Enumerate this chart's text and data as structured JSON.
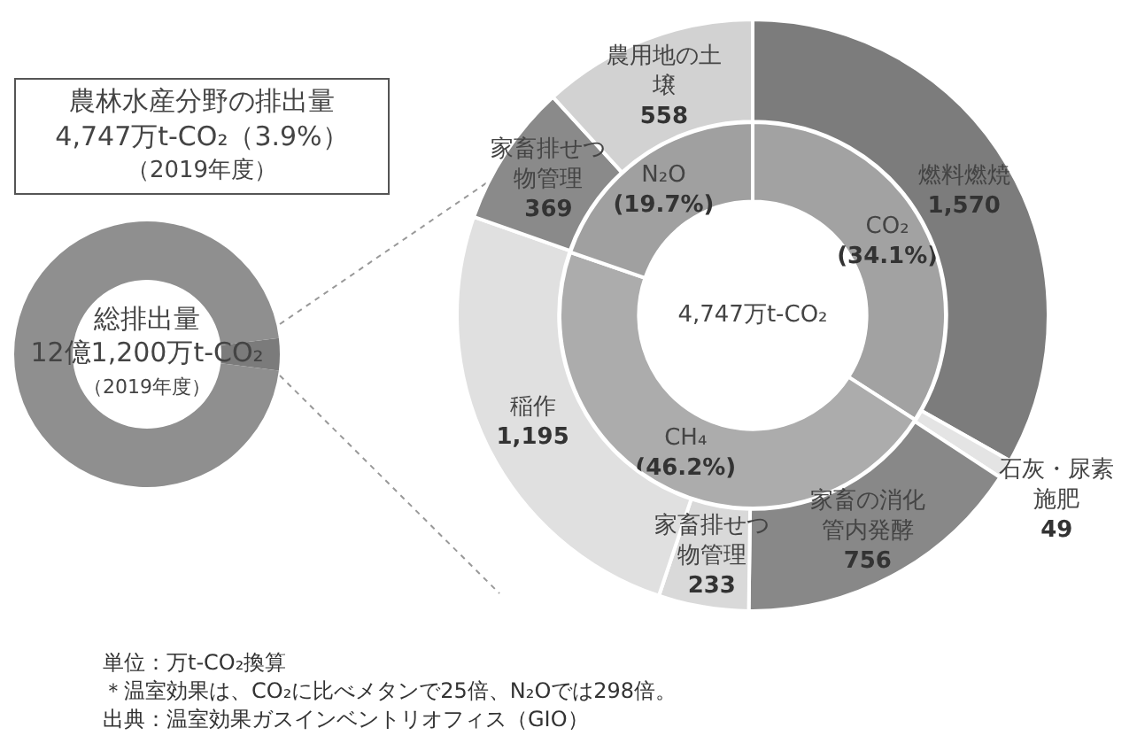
{
  "chart_data": [
    {
      "type": "donut",
      "title": "農林水産分野の排出量",
      "subtitle": "4,747万t-CO₂（3.9%）",
      "categories": [
        null,
        null
      ],
      "values": [
        3.9,
        96.1
      ],
      "colors": [
        "#7b7b7b",
        "#8f8f8f"
      ],
      "legend": false,
      "annotations": [
        "総排出量",
        "12億1,200万t-CO₂",
        "（2019年度）",
        "（2019年度）",
        "単位：万t-CO₂換算",
        "＊温室効果は、CO₂に比べメタンで25倍、N₂Oでは298倍。",
        "出典：温室効果ガスインベントリオフィス（GIO）"
      ]
    },
    {
      "type": "donut",
      "legend": false,
      "categories": [
        "燃料燃焼",
        "石灰・尿素施肥",
        "家畜の消化管内発酵",
        "家畜排せつ物管理",
        "稲作",
        "家畜排せつ物管理",
        "農用地の土壌"
      ],
      "values": [
        1570,
        49,
        756,
        233,
        1195,
        369,
        558
      ],
      "value_labels": [
        "1,570",
        "49",
        "756",
        "233",
        "1,195",
        "369",
        "558"
      ],
      "colors": [
        "#7c7c7c",
        "#e4e4e4",
        "#888888",
        "#d9d9d9",
        "#e0e0e0",
        "#8a8a8a",
        "#d2d2d2"
      ]
    },
    {
      "type": "donut",
      "legend": false,
      "categories": [
        "CO₂",
        "CH₄",
        "N₂O"
      ],
      "values": [
        34.1,
        46.2,
        19.7
      ],
      "value_labels": [
        "(34.1%)",
        "(46.2%)",
        "(19.7%)"
      ],
      "colors": [
        "#a2a2a2",
        "#acacac",
        "#a0a0a0"
      ],
      "annotations": [
        "4,747万t-CO₂"
      ]
    }
  ]
}
